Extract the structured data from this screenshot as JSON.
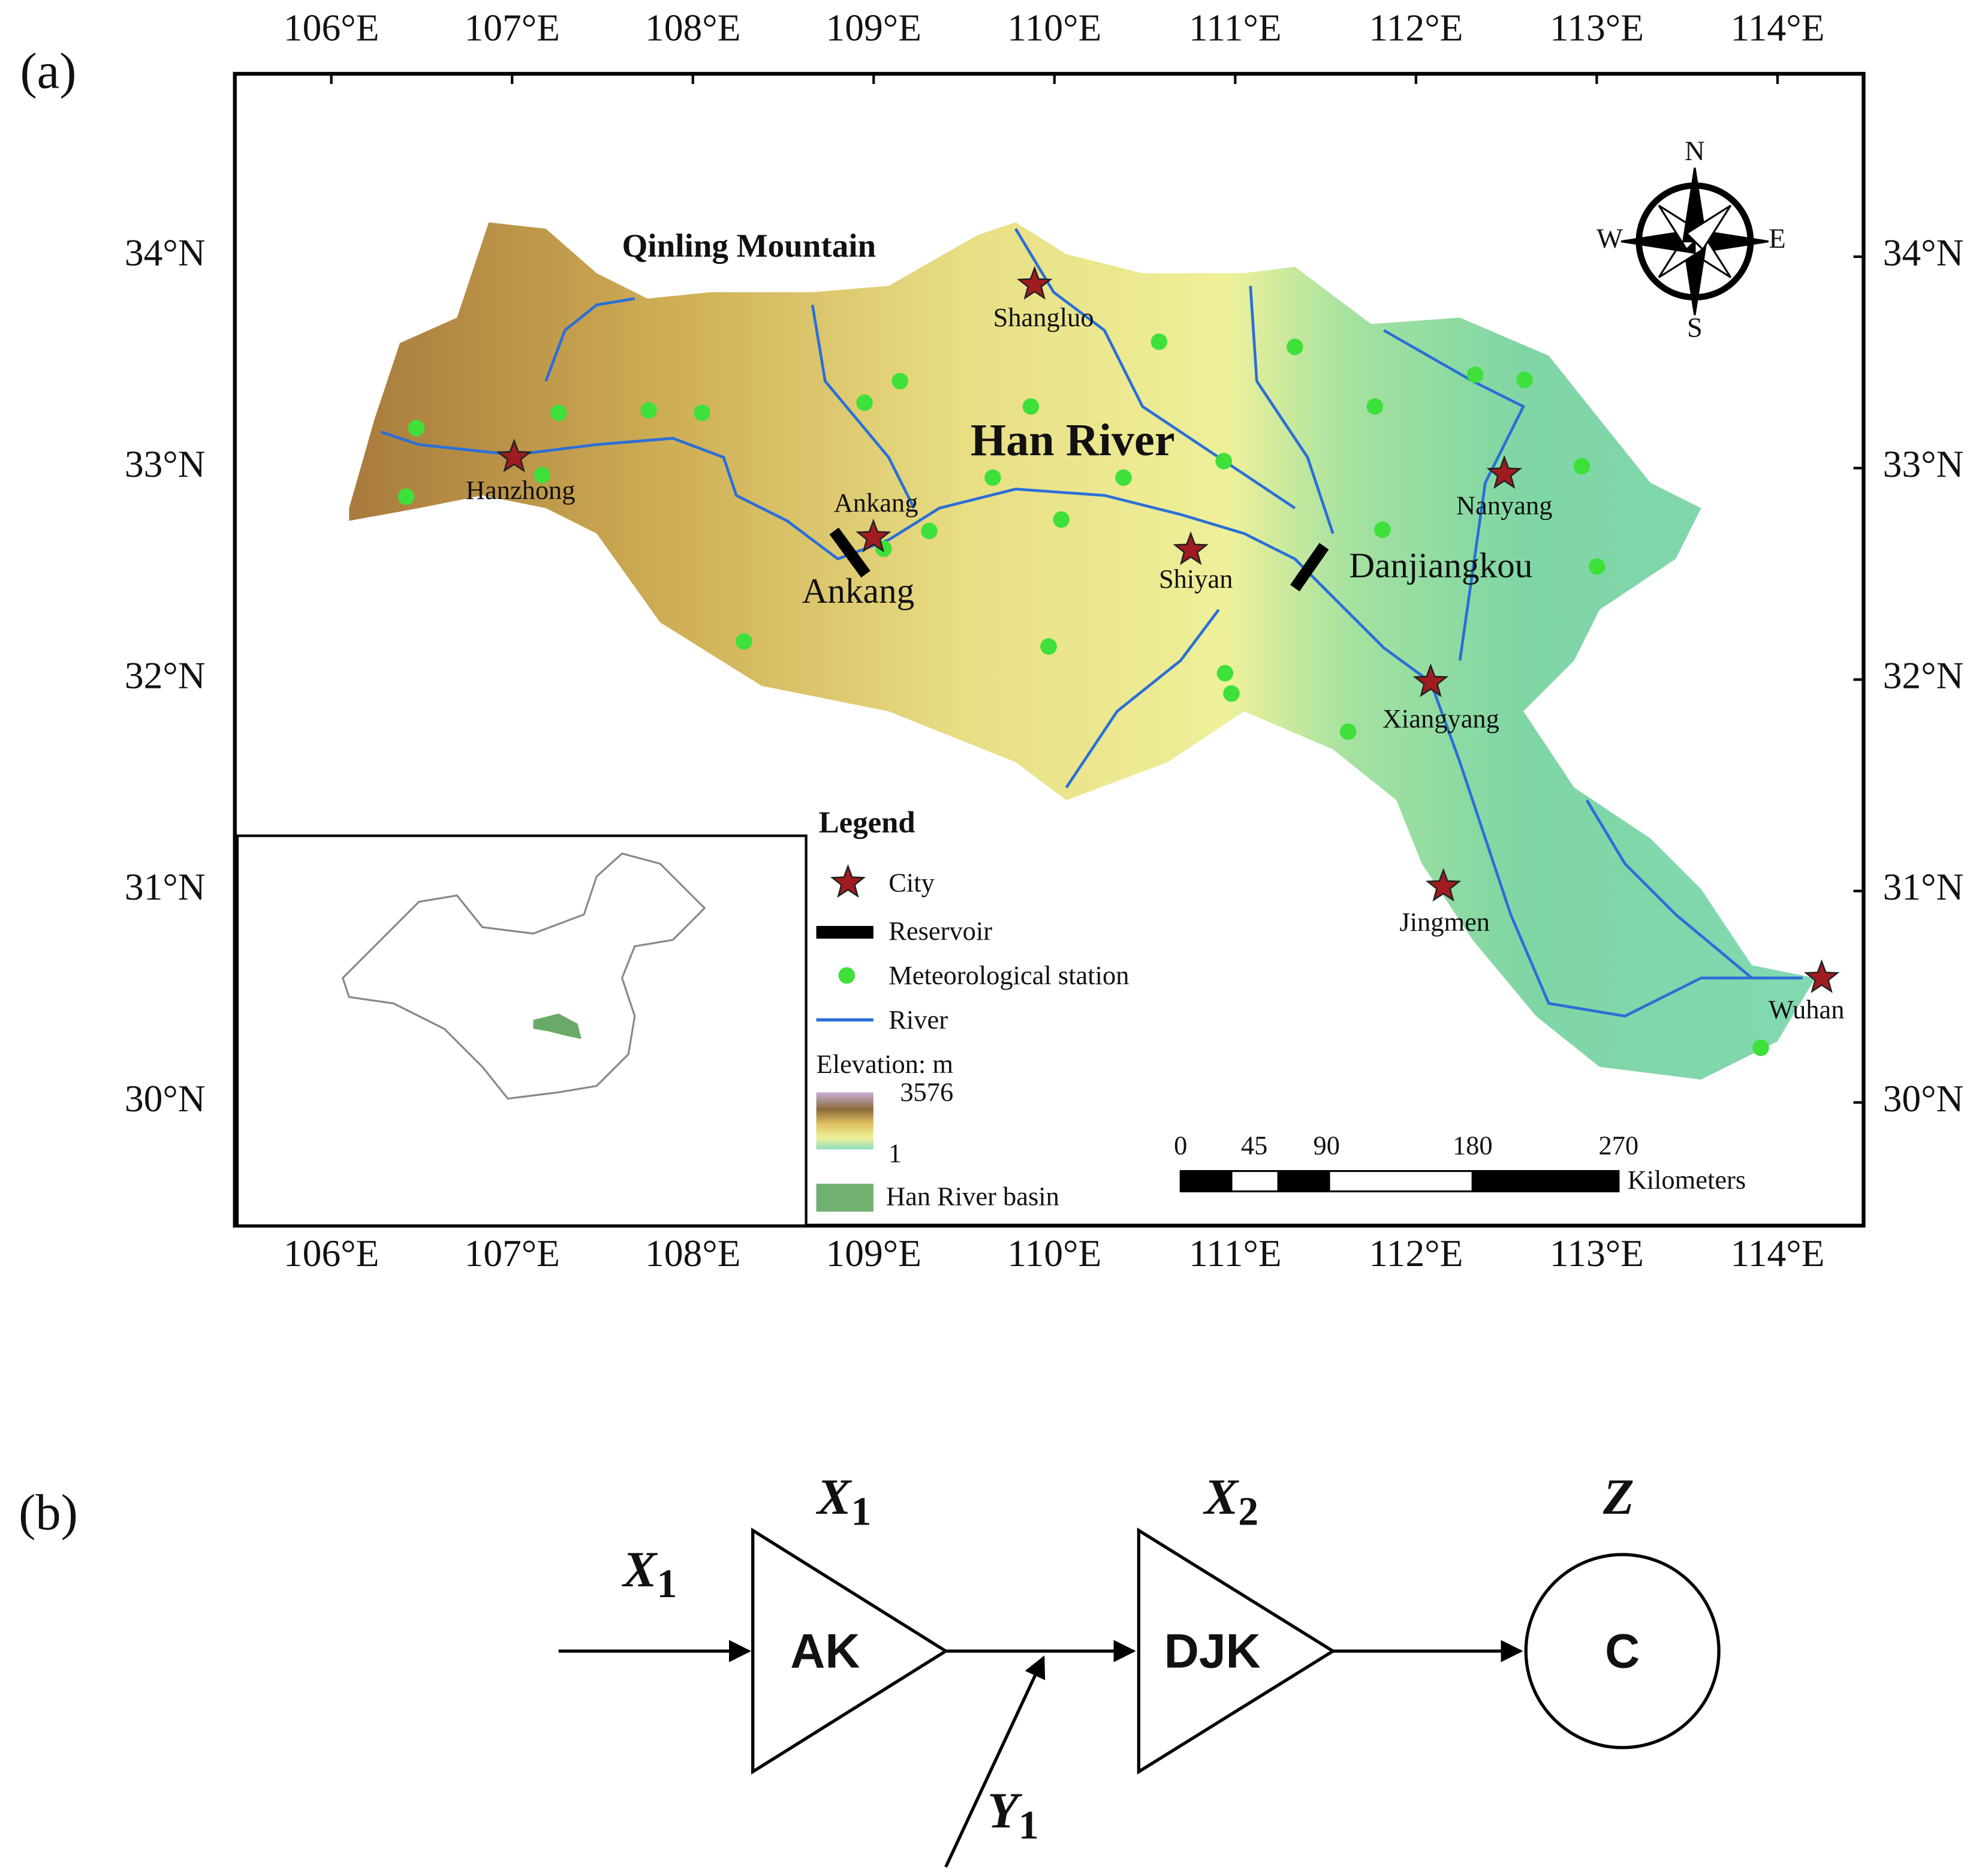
{
  "panel_a": {
    "label": "(a)",
    "lon_ticks": [
      "106°E",
      "107°E",
      "108°E",
      "109°E",
      "110°E",
      "111°E",
      "112°E",
      "113°E",
      "114°E"
    ],
    "lat_ticks": [
      "30°N",
      "31°N",
      "32°N",
      "33°N",
      "34°N"
    ],
    "cities": [
      "Hanzhong",
      "Ankang",
      "Shangluo",
      "Shiyan",
      "Nanyang",
      "Xiangyang",
      "Jingmen",
      "Wuhan"
    ],
    "reservoirs": [
      "Ankang",
      "Danjiangkou"
    ],
    "annotations": [
      "Qinling Mountain",
      "Han River"
    ],
    "compass": [
      "N",
      "S",
      "W",
      "E"
    ],
    "legend": {
      "title": "Legend",
      "items": [
        "City",
        "Reservoir",
        "Meteorological station",
        "River"
      ],
      "elevation_title": "Elevation: m",
      "elevation_max": 3576,
      "elevation_min": 1,
      "basin": "Han River basin"
    },
    "scale_bar": {
      "ticks": [
        0,
        45,
        90,
        180,
        270
      ],
      "unit": "Kilometers"
    }
  },
  "panel_b": {
    "label": "(b)",
    "nodes": [
      {
        "label": "AK",
        "symbol": "X",
        "subscript": "1"
      },
      {
        "label": "DJK",
        "symbol": "X",
        "subscript": "2"
      },
      {
        "label": "C",
        "symbol": "Z"
      }
    ],
    "inputs": [
      {
        "symbol": "X",
        "subscript": "1"
      },
      {
        "symbol": "Y",
        "subscript": "1"
      }
    ]
  }
}
